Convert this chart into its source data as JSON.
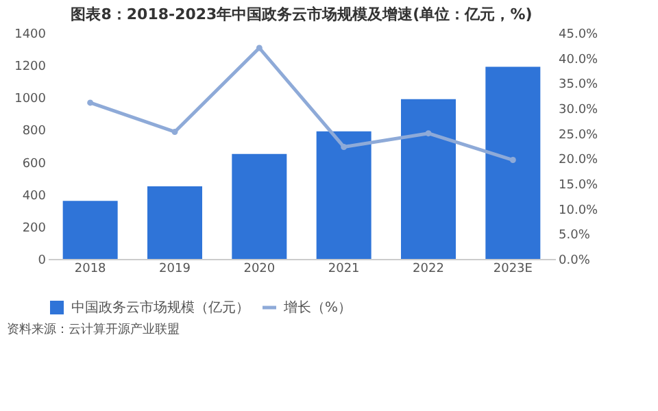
{
  "chart_data": {
    "type": "bar",
    "title": "图表8：2018-2023年中国政务云市场规模及增速(单位：亿元，%)",
    "categories": [
      "2018",
      "2019",
      "2020",
      "2021",
      "2022",
      "2023E"
    ],
    "series": [
      {
        "name": "中国政务云市场规模（亿元）",
        "color": "#2f74d8",
        "values": [
          360,
          450,
          650,
          790,
          990,
          1190
        ]
      },
      {
        "name": "增长（%）",
        "type": "line",
        "axis": "y2",
        "color": "#8eaad8",
        "marker": "circle",
        "values": [
          31.1,
          25.3,
          42.0,
          22.3,
          25.0,
          19.7
        ]
      }
    ],
    "ylim": [
      0,
      1400
    ],
    "yticks": [
      0,
      200,
      400,
      600,
      800,
      1000,
      1200,
      1400
    ],
    "y2lim": [
      0,
      45
    ],
    "y2ticks": [
      {
        "value": 0,
        "label": "0.0%"
      },
      {
        "value": 5,
        "label": "5.0%"
      },
      {
        "value": 10,
        "label": "10.0%"
      },
      {
        "value": 15,
        "label": "15.0%"
      },
      {
        "value": 20,
        "label": "20.0%"
      },
      {
        "value": 25,
        "label": "25.0%"
      },
      {
        "value": 30,
        "label": "30.0%"
      },
      {
        "value": 35,
        "label": "35.0%"
      },
      {
        "value": 40,
        "label": "40.0%"
      },
      {
        "value": 45,
        "label": "45.0%"
      }
    ],
    "grid": false,
    "legend": "bottom",
    "annotations": [
      "资料来源：云计算开源产业联盟"
    ]
  }
}
